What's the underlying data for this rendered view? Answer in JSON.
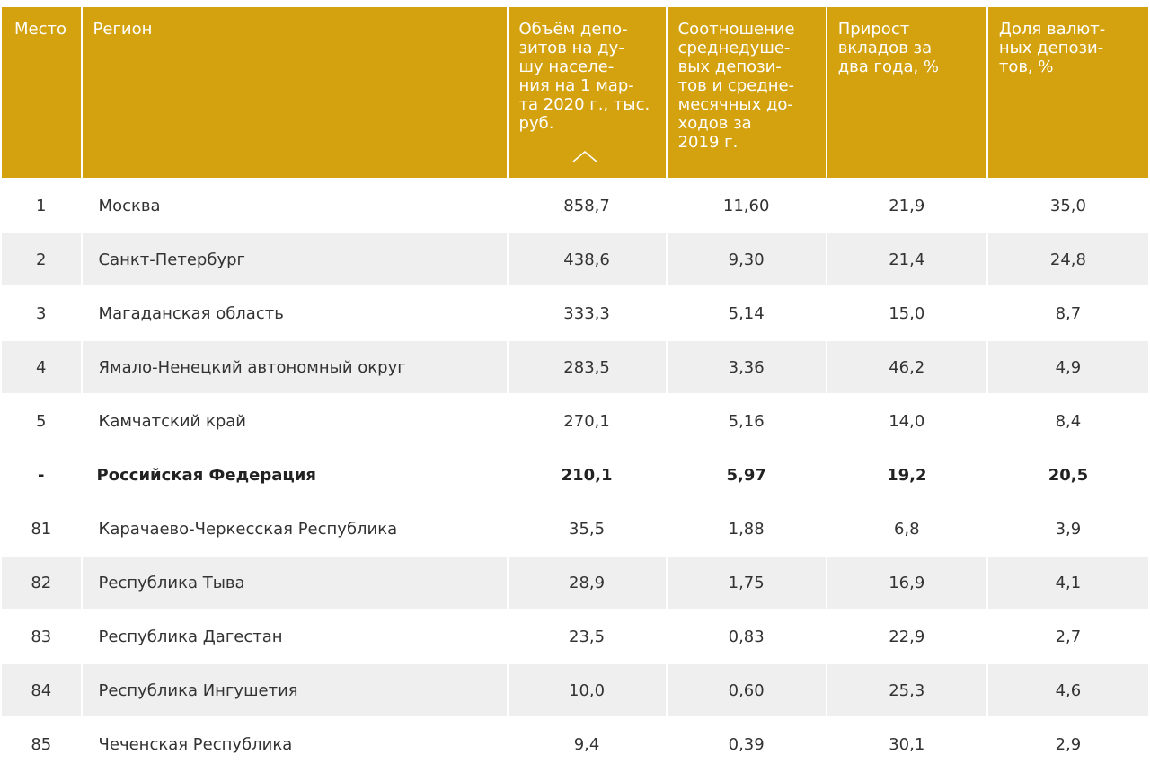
{
  "header": {
    "place": "Место",
    "region": "Регион",
    "volume": "Объём депо-\nзитов на ду-\nшу населе-\nния на 1 мар-\nта 2020 г., тыс.\nруб.",
    "ratio": "Соотношение\nсреднедуше-\nвых депози-\nтов и средне-\nмесячных до-\nходов за\n2019 г.",
    "growth": "Прирост\nвкладов за\nдва года, %",
    "share": "Доля валют-\nных депози-\nтов, %",
    "sort_icon": "chevron-up-icon"
  },
  "rows": [
    {
      "place": "1",
      "region": "Москва",
      "volume": "858,7",
      "ratio": "11,60",
      "growth": "21,9",
      "share": "35,0"
    },
    {
      "place": "2",
      "region": "Санкт-Петербург",
      "volume": "438,6",
      "ratio": "9,30",
      "growth": "21,4",
      "share": "24,8"
    },
    {
      "place": "3",
      "region": "Магаданская область",
      "volume": "333,3",
      "ratio": "5,14",
      "growth": "15,0",
      "share": "8,7"
    },
    {
      "place": "4",
      "region": "Ямало-Ненецкий автономный округ",
      "volume": "283,5",
      "ratio": "3,36",
      "growth": "46,2",
      "share": "4,9"
    },
    {
      "place": "5",
      "region": "Камчатский край",
      "volume": "270,1",
      "ratio": "5,16",
      "growth": "14,0",
      "share": "8,4"
    },
    {
      "place": "-",
      "region": "Российская Федерация",
      "volume": "210,1",
      "ratio": "5,97",
      "growth": "19,2",
      "share": "20,5"
    },
    {
      "place": "81",
      "region": "Карачаево-Черкесская Республика",
      "volume": "35,5",
      "ratio": "1,88",
      "growth": "6,8",
      "share": "3,9"
    },
    {
      "place": "82",
      "region": "Республика Тыва",
      "volume": "28,9",
      "ratio": "1,75",
      "growth": "16,9",
      "share": "4,1"
    },
    {
      "place": "83",
      "region": "Республика Дагестан",
      "volume": "23,5",
      "ratio": "0,83",
      "growth": "22,9",
      "share": "2,7"
    },
    {
      "place": "84",
      "region": "Республика Ингушетия",
      "volume": "10,0",
      "ratio": "0,60",
      "growth": "25,3",
      "share": "4,6"
    },
    {
      "place": "85",
      "region": "Чеченская Республика",
      "volume": "9,4",
      "ratio": "0,39",
      "growth": "30,1",
      "share": "2,9"
    }
  ],
  "colors": {
    "header_bg": "#d4a20f",
    "header_text": "#ffffff",
    "row_shade": "#efefef"
  }
}
